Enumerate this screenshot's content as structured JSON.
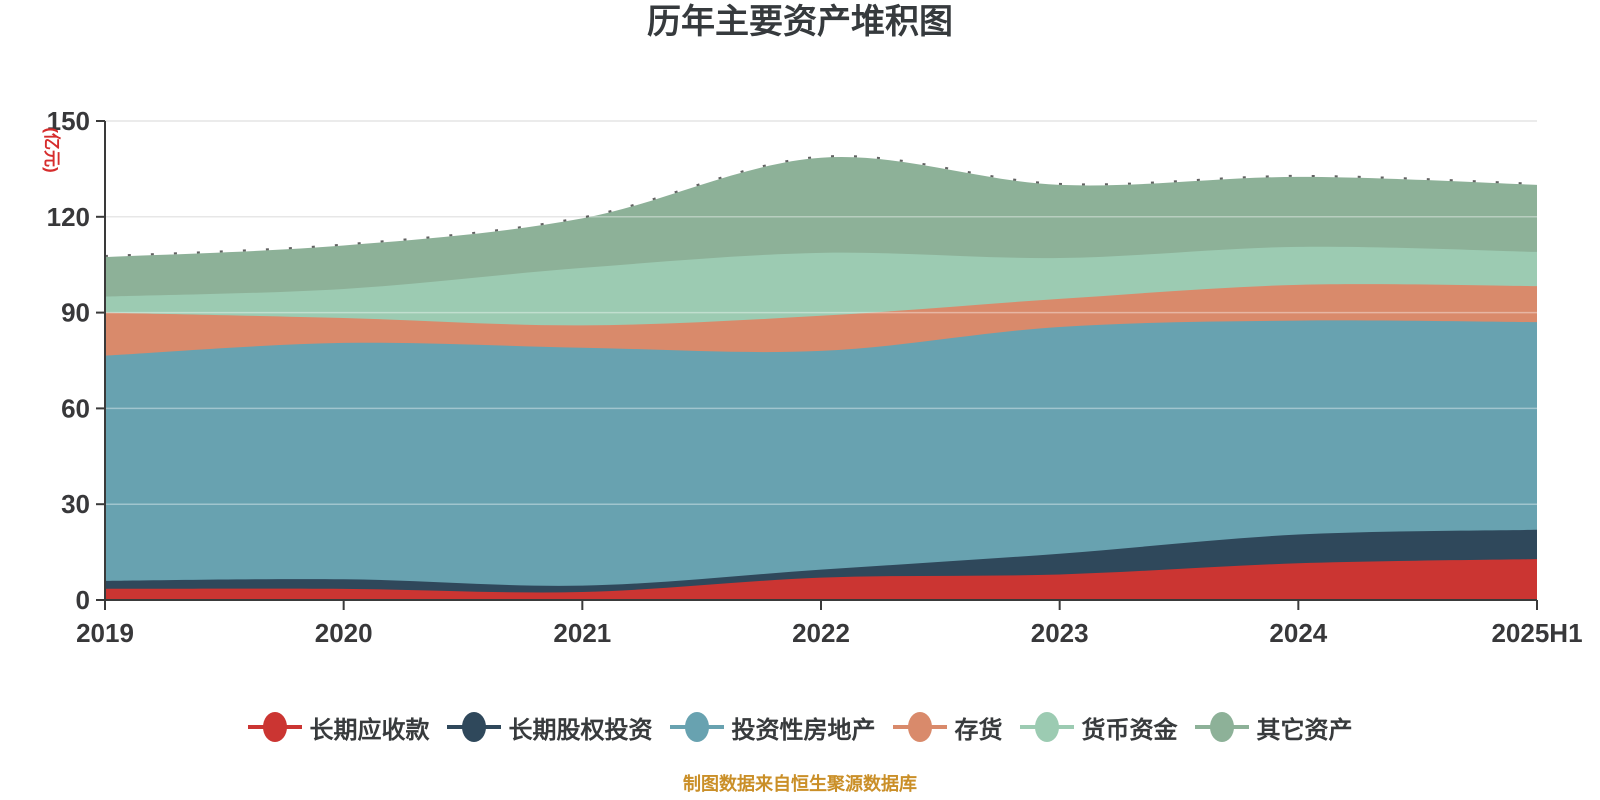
{
  "title": {
    "text": "历年主要资产堆积图"
  },
  "y_axis": {
    "name": "(亿元)",
    "name_color": "#d62c2c"
  },
  "footer": {
    "text": "制图数据来自恒生聚源数据库",
    "color": "#ca8f28"
  },
  "colors": {
    "background": "#ffffff",
    "grid_line": "#d9d9d9",
    "axis_line": "#3a3a3a",
    "tick_label": "#38383a",
    "title_text": "#363a3d"
  },
  "chart_data": {
    "type": "area",
    "stacked": true,
    "smooth": true,
    "title": "历年主要资产堆积图",
    "ylabel": "(亿元)",
    "categories": [
      "2019",
      "2020",
      "2021",
      "2022",
      "2023",
      "2024",
      "2025H1"
    ],
    "series": [
      {
        "name": "长期应收款",
        "color": "#cb3532",
        "values": [
          3.5,
          3.5,
          2.5,
          7.0,
          8.0,
          11.5,
          12.8
        ]
      },
      {
        "name": "长期股权投资",
        "color": "#2f485b",
        "values": [
          2.5,
          3.0,
          2.0,
          2.5,
          6.5,
          9.0,
          9.2
        ]
      },
      {
        "name": "投资性房地产",
        "color": "#68a2b0",
        "values": [
          70.5,
          74.0,
          74.5,
          68.5,
          71.0,
          67.0,
          65.0
        ]
      },
      {
        "name": "存货",
        "color": "#d98a6b",
        "values": [
          13.5,
          7.8,
          7.0,
          11.0,
          8.8,
          11.2,
          11.3
        ]
      },
      {
        "name": "货币资金",
        "color": "#9ccbb2",
        "values": [
          5.0,
          9.1,
          18.0,
          19.7,
          12.8,
          11.9,
          10.7
        ]
      },
      {
        "name": "其它资产",
        "color": "#8db198",
        "values": [
          12.4,
          13.6,
          15.5,
          29.8,
          22.9,
          21.9,
          21.0
        ]
      }
    ],
    "ylim": [
      0,
      150
    ],
    "yticks": [
      0,
      30,
      60,
      90,
      120,
      150
    ],
    "grid": true,
    "legend_position": "bottom"
  }
}
